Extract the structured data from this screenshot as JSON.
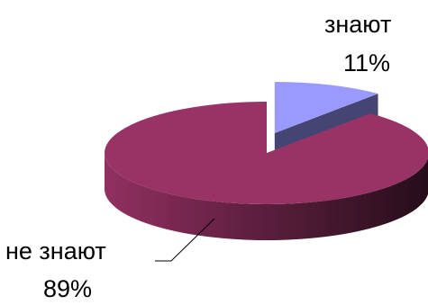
{
  "chart_data": {
    "type": "pie",
    "style": "3d-exploded",
    "legend": "none",
    "slices": [
      {
        "label": "знают",
        "value": 11,
        "value_label": "11%",
        "color": "#9999ff",
        "exploded": true
      },
      {
        "label": "не знают",
        "value": 89,
        "value_label": "89%",
        "color": "#993366",
        "exploded": false
      }
    ]
  }
}
